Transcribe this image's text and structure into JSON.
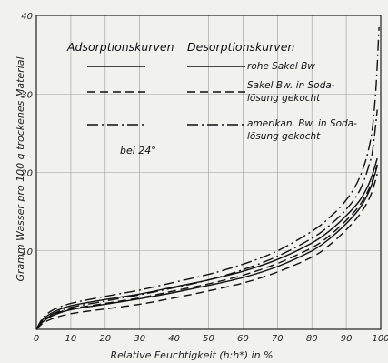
{
  "chart_data": {
    "type": "line",
    "xlabel": "Relative Feuchtigkeit (h:h*) in %",
    "ylabel": "Gramm Wasser pro 100 g trockenes Material",
    "xlim": [
      0,
      100
    ],
    "ylim": [
      0,
      40
    ],
    "xticks": [
      0,
      10,
      20,
      30,
      40,
      50,
      60,
      70,
      80,
      90,
      100
    ],
    "yticks": [
      10,
      20,
      30,
      40
    ],
    "grid": true,
    "legend": {
      "placement": "top-left",
      "adsorption_header": "Adsorptionskurven",
      "desorption_header": "Desorptionskurven",
      "entries": [
        {
          "style": "solid",
          "line1": "rohe Sakel Bw",
          "line2": ""
        },
        {
          "style": "dashed",
          "line1": "Sakel Bw. in Soda-",
          "line2": "lösung gekocht"
        },
        {
          "style": "dashdot",
          "line1": "amerikan. Bw. in Soda-",
          "line2": "lösung gekocht"
        }
      ]
    },
    "annotation": "bei 24°",
    "series": [
      {
        "style": "solid",
        "kind": "adsorption",
        "x": [
          0,
          2,
          5,
          10,
          20,
          30,
          40,
          50,
          60,
          70,
          80,
          85,
          90,
          94,
          97,
          99
        ],
        "y": [
          0,
          1.0,
          1.8,
          2.5,
          3.2,
          3.9,
          4.7,
          5.6,
          6.6,
          8.0,
          10.0,
          11.5,
          13.5,
          15.5,
          18.0,
          20.8
        ]
      },
      {
        "style": "solid",
        "kind": "desorption",
        "x": [
          0,
          2,
          5,
          10,
          20,
          30,
          40,
          50,
          60,
          70,
          80,
          85,
          90,
          94,
          97,
          99
        ],
        "y": [
          0,
          1.3,
          2.2,
          3.0,
          3.8,
          4.5,
          5.4,
          6.3,
          7.4,
          8.9,
          11.0,
          12.5,
          14.5,
          16.5,
          19.0,
          21.8
        ]
      },
      {
        "style": "dashed",
        "kind": "adsorption",
        "x": [
          0,
          2,
          5,
          10,
          20,
          30,
          40,
          50,
          60,
          70,
          80,
          85,
          90,
          94,
          97,
          99
        ],
        "y": [
          0,
          0.8,
          1.4,
          2.0,
          2.6,
          3.2,
          4.0,
          4.9,
          5.9,
          7.3,
          9.2,
          10.7,
          12.7,
          14.7,
          17.0,
          19.8
        ]
      },
      {
        "style": "dashed",
        "kind": "desorption",
        "x": [
          0,
          2,
          5,
          10,
          20,
          30,
          40,
          50,
          60,
          70,
          80,
          85,
          90,
          94,
          97,
          99
        ],
        "y": [
          0,
          1.1,
          1.9,
          2.6,
          3.3,
          4.0,
          4.9,
          5.8,
          6.9,
          8.4,
          10.4,
          11.9,
          13.9,
          15.9,
          18.3,
          21.0
        ]
      },
      {
        "style": "dashdot",
        "kind": "adsorption",
        "x": [
          0,
          2,
          5,
          10,
          20,
          30,
          40,
          50,
          60,
          70,
          80,
          85,
          90,
          94,
          97,
          98,
          99
        ],
        "y": [
          0,
          1.2,
          2.0,
          2.8,
          3.6,
          4.4,
          5.3,
          6.3,
          7.6,
          9.3,
          11.6,
          13.2,
          15.3,
          17.8,
          21.5,
          24.0,
          28.0
        ]
      },
      {
        "style": "dashdot",
        "kind": "desorption",
        "x": [
          0,
          2,
          5,
          10,
          20,
          30,
          40,
          50,
          60,
          70,
          80,
          85,
          90,
          94,
          97,
          98.5,
          99.5
        ],
        "y": [
          0,
          1.5,
          2.5,
          3.3,
          4.2,
          5.0,
          6.0,
          7.0,
          8.3,
          10.0,
          12.5,
          14.2,
          16.5,
          19.5,
          24.0,
          30.0,
          38.5
        ]
      }
    ]
  }
}
